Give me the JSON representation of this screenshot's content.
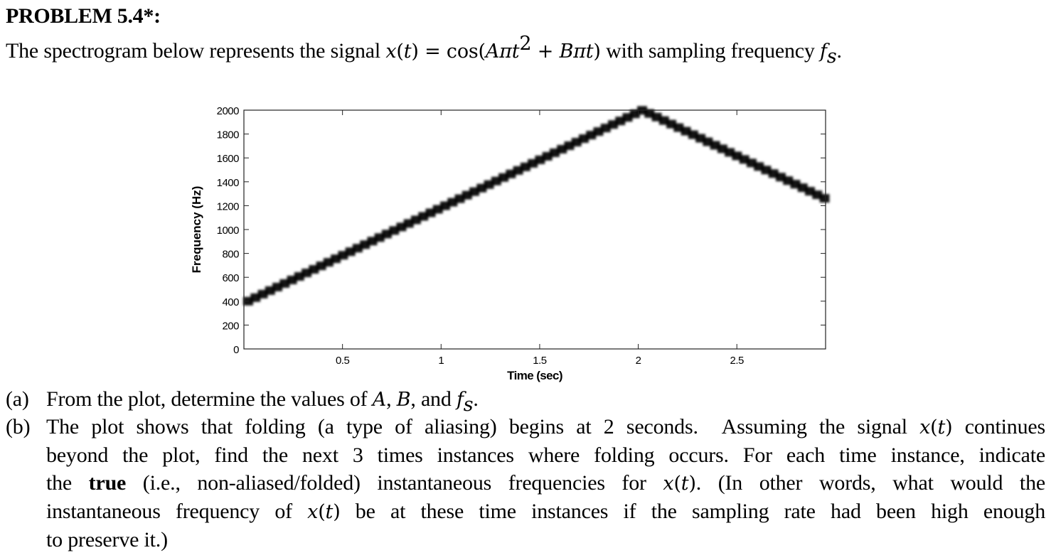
{
  "problem": {
    "title": "PROBLEM 5.4*:",
    "intro_prefix": "The spectrogram below represents the signal ",
    "intro_formula": "x(t) = cos(Aπt² + Bπt)",
    "intro_suffix": " with sampling frequency ",
    "intro_fs": "fs",
    "intro_end": "."
  },
  "chart_data": {
    "type": "line",
    "title": "",
    "xlabel": "Time (sec)",
    "ylabel": "Frequency (Hz)",
    "xlim": [
      0,
      2.95
    ],
    "ylim": [
      0,
      2000
    ],
    "xticks": [
      0.5,
      1,
      1.5,
      2,
      2.5
    ],
    "xtick_labels": [
      "0.5",
      "1",
      "1.5",
      "2",
      "2.5"
    ],
    "yticks": [
      0,
      200,
      400,
      600,
      800,
      1000,
      1200,
      1400,
      1600,
      1800,
      2000
    ],
    "ytick_labels": [
      "0",
      "200",
      "400",
      "600",
      "800",
      "1000",
      "1200",
      "1400",
      "1600",
      "1800",
      "2000"
    ],
    "grid": false,
    "legend": null,
    "series": [
      {
        "name": "spectrogram ridge (apparent frequency)",
        "x": [
          0,
          0.5,
          1,
          1.5,
          2,
          2.5,
          2.95
        ],
        "y": [
          400,
          800,
          1200,
          1600,
          2000,
          1600,
          1240
        ]
      }
    ],
    "annotations": []
  },
  "questions": [
    {
      "label": "(a)",
      "lines": [
        "From the plot, determine the values of A, B, and fs."
      ]
    },
    {
      "label": "(b)",
      "lines": [
        "The plot shows that folding (a type of aliasing) begins at 2 seconds.  Assuming the signal x(t) continues",
        "beyond the plot, find the next 3 times instances where folding occurs.  For each time instance, indicate",
        "the true (i.e., non-aliased/folded) instantaneous frequencies for x(t). (In other words, what would the",
        "instantaneous frequency of x(t) be at these time instances if the sampling rate had been high enough",
        "to preserve it.)"
      ]
    }
  ]
}
